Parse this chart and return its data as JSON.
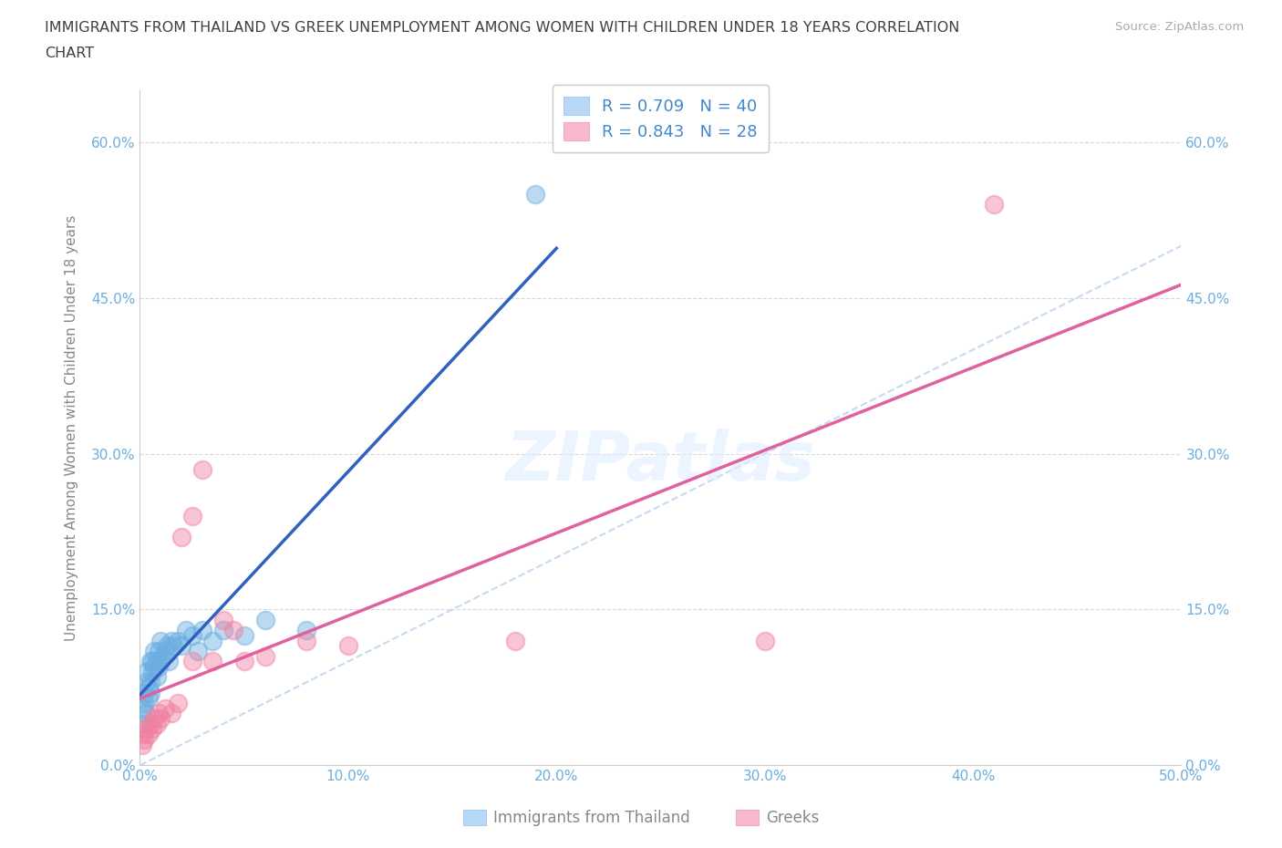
{
  "title_line1": "IMMIGRANTS FROM THAILAND VS GREEK UNEMPLOYMENT AMONG WOMEN WITH CHILDREN UNDER 18 YEARS CORRELATION",
  "title_line2": "CHART",
  "source": "Source: ZipAtlas.com",
  "ylabel": "Unemployment Among Women with Children Under 18 years",
  "xlim": [
    0.0,
    0.5
  ],
  "ylim": [
    0.0,
    0.65
  ],
  "xticks": [
    0.0,
    0.1,
    0.2,
    0.3,
    0.4,
    0.5
  ],
  "yticks": [
    0.0,
    0.15,
    0.3,
    0.45,
    0.6
  ],
  "watermark": "ZIPatlas",
  "legend_r1": "0.709",
  "legend_n1": "40",
  "legend_r2": "0.843",
  "legend_n2": "28",
  "blue_color": "#6aaee0",
  "pink_color": "#f080a0",
  "blue_scatter": [
    [
      0.001,
      0.04
    ],
    [
      0.001,
      0.055
    ],
    [
      0.002,
      0.06
    ],
    [
      0.002,
      0.07
    ],
    [
      0.003,
      0.05
    ],
    [
      0.003,
      0.08
    ],
    [
      0.003,
      0.09
    ],
    [
      0.004,
      0.065
    ],
    [
      0.004,
      0.075
    ],
    [
      0.005,
      0.07
    ],
    [
      0.005,
      0.08
    ],
    [
      0.005,
      0.1
    ],
    [
      0.006,
      0.09
    ],
    [
      0.006,
      0.1
    ],
    [
      0.007,
      0.095
    ],
    [
      0.007,
      0.11
    ],
    [
      0.008,
      0.085
    ],
    [
      0.008,
      0.1
    ],
    [
      0.009,
      0.095
    ],
    [
      0.009,
      0.11
    ],
    [
      0.01,
      0.1
    ],
    [
      0.01,
      0.12
    ],
    [
      0.011,
      0.105
    ],
    [
      0.012,
      0.11
    ],
    [
      0.013,
      0.115
    ],
    [
      0.014,
      0.1
    ],
    [
      0.015,
      0.12
    ],
    [
      0.016,
      0.115
    ],
    [
      0.018,
      0.12
    ],
    [
      0.02,
      0.115
    ],
    [
      0.022,
      0.13
    ],
    [
      0.025,
      0.125
    ],
    [
      0.028,
      0.11
    ],
    [
      0.03,
      0.13
    ],
    [
      0.035,
      0.12
    ],
    [
      0.04,
      0.13
    ],
    [
      0.05,
      0.125
    ],
    [
      0.06,
      0.14
    ],
    [
      0.08,
      0.13
    ],
    [
      0.19,
      0.55
    ]
  ],
  "pink_scatter": [
    [
      0.001,
      0.02
    ],
    [
      0.001,
      0.03
    ],
    [
      0.002,
      0.025
    ],
    [
      0.003,
      0.035
    ],
    [
      0.004,
      0.03
    ],
    [
      0.005,
      0.04
    ],
    [
      0.006,
      0.035
    ],
    [
      0.007,
      0.045
    ],
    [
      0.008,
      0.04
    ],
    [
      0.009,
      0.05
    ],
    [
      0.01,
      0.045
    ],
    [
      0.012,
      0.055
    ],
    [
      0.015,
      0.05
    ],
    [
      0.018,
      0.06
    ],
    [
      0.02,
      0.22
    ],
    [
      0.025,
      0.24
    ],
    [
      0.025,
      0.1
    ],
    [
      0.03,
      0.285
    ],
    [
      0.035,
      0.1
    ],
    [
      0.04,
      0.14
    ],
    [
      0.045,
      0.13
    ],
    [
      0.05,
      0.1
    ],
    [
      0.06,
      0.105
    ],
    [
      0.08,
      0.12
    ],
    [
      0.1,
      0.115
    ],
    [
      0.18,
      0.12
    ],
    [
      0.3,
      0.12
    ],
    [
      0.41,
      0.54
    ]
  ],
  "background_color": "#ffffff",
  "grid_color": "#d8d8d8",
  "title_color": "#404040"
}
